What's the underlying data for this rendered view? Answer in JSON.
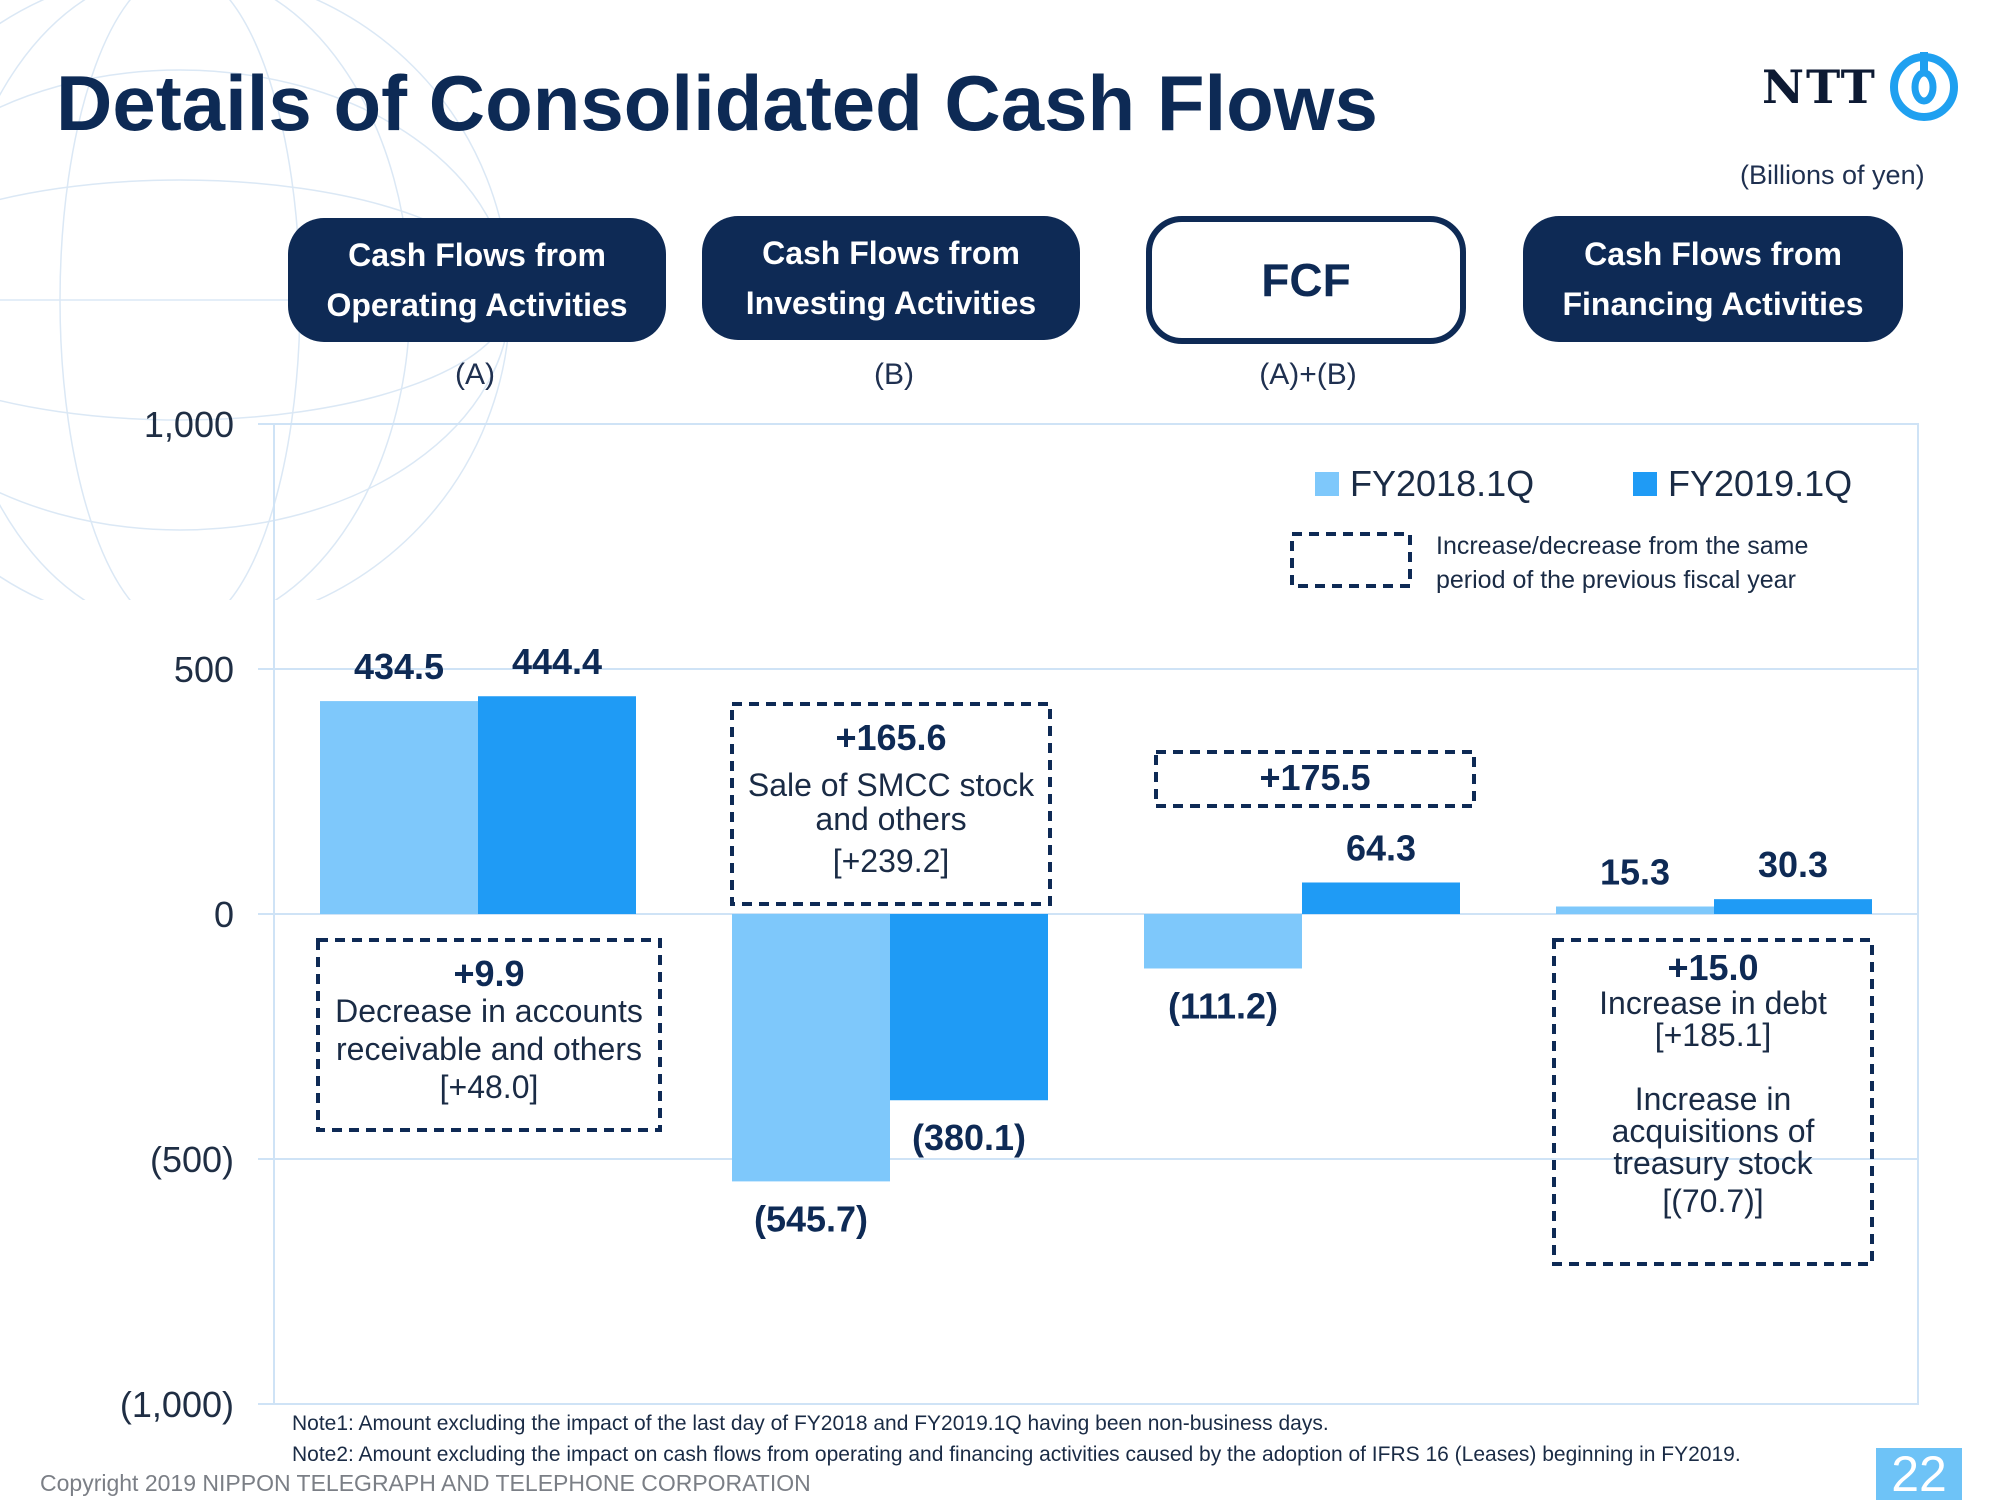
{
  "title": "Details of Consolidated Cash Flows",
  "logo": {
    "text": "NTT"
  },
  "units": "(Billions of yen)",
  "columns": [
    {
      "line1": "Cash Flows from",
      "line2": "Operating Activities",
      "ref": "(A)"
    },
    {
      "line1": "Cash Flows from",
      "line2": "Investing Activities",
      "ref": "(B)"
    },
    {
      "line1": "FCF",
      "line2": "",
      "ref": "(A)+(B)"
    },
    {
      "line1": "Cash Flows from",
      "line2": "Financing Activities",
      "ref": ""
    }
  ],
  "legend": {
    "fy2018": "FY2018.1Q",
    "fy2019": "FY2019.1Q",
    "dashed_line1": "Increase/decrease from the same",
    "dashed_line2": "period of the previous fiscal year"
  },
  "chart_data": {
    "type": "bar",
    "categories": [
      "Operating Activities (A)",
      "Investing Activities (B)",
      "FCF (A)+(B)",
      "Financing Activities"
    ],
    "series": [
      {
        "name": "FY2018.1Q",
        "values": [
          434.5,
          -545.7,
          -111.2,
          15.3
        ],
        "labels": [
          "434.5",
          "(545.7)",
          "(111.2)",
          "15.3"
        ],
        "color": "#7ec8fb"
      },
      {
        "name": "FY2019.1Q",
        "values": [
          444.4,
          -380.1,
          64.3,
          30.3
        ],
        "labels": [
          "444.4",
          "(380.1)",
          "64.3",
          "30.3"
        ],
        "color": "#1f9bf5"
      }
    ],
    "ylim": [
      -1000,
      1000
    ],
    "yticks": [
      1000,
      500,
      0,
      -500,
      -1000
    ],
    "ytick_labels": [
      "1,000",
      "500",
      "0",
      "(500)",
      "(1,000)"
    ],
    "grid": true,
    "legend_position": "top-right",
    "annotations": [
      {
        "category": 0,
        "lines": [
          "+9.9",
          "Decrease in accounts",
          "receivable and others",
          "[+48.0]"
        ]
      },
      {
        "category": 1,
        "lines": [
          "+165.6",
          "Sale of SMCC stock",
          "and others",
          "[+239.2]"
        ]
      },
      {
        "category": 2,
        "lines": [
          "+175.5"
        ]
      },
      {
        "category": 3,
        "lines": [
          "+15.0",
          "Increase in debt",
          "[+185.1]",
          "Increase in",
          "acquisitions of",
          "treasury stock",
          "[(70.7)]"
        ]
      }
    ]
  },
  "notes": [
    "Note1: Amount excluding the impact of the last day of FY2018 and FY2019.1Q having been non-business days.",
    "Note2: Amount excluding the impact on cash flows from operating and financing activities caused by the adoption of IFRS 16 (Leases) beginning in FY2019."
  ],
  "copyright": "Copyright 2019 NIPPON TELEGRAPH AND TELEPHONE CORPORATION",
  "page_number": "22",
  "colors": {
    "navy": "#0e2a55",
    "light_blue": "#7ec8fb",
    "blue": "#1f9bf5",
    "grid": "#cfe3f6"
  }
}
